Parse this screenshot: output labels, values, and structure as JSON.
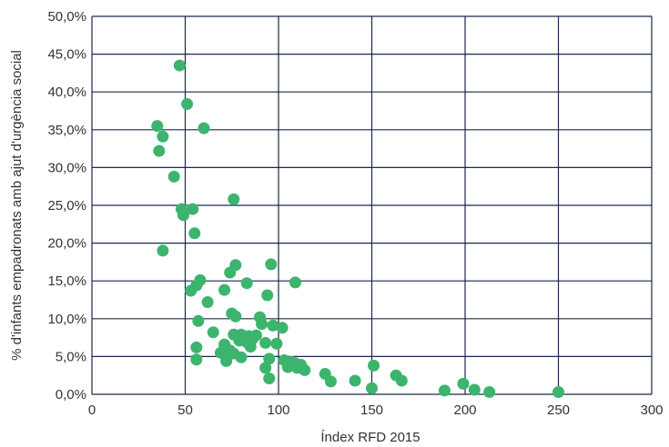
{
  "chart_data": {
    "type": "scatter",
    "title": "",
    "xlabel": "Índex RFD 2015",
    "ylabel": "% d'infants empadronats amb ajut d'urgència social",
    "xlim": [
      0,
      300
    ],
    "ylim": [
      0,
      50
    ],
    "x_ticks": [
      "0",
      "50",
      "100",
      "150",
      "200",
      "250",
      "300"
    ],
    "y_ticks": [
      "0,0%",
      "5,0%",
      "10,0%",
      "15,0%",
      "20,0%",
      "25,0%",
      "30,0%",
      "35,0%",
      "40,0%",
      "45,0%",
      "50,0%"
    ],
    "grid": true,
    "marker_color": "#3cb46e",
    "grid_color": "#1a2a4a",
    "series": [
      {
        "points": [
          [
            47,
            43.5
          ],
          [
            51,
            38.4
          ],
          [
            35,
            35.5
          ],
          [
            60,
            35.2
          ],
          [
            38,
            34.1
          ],
          [
            36,
            32.2
          ],
          [
            44,
            28.8
          ],
          [
            76,
            25.8
          ],
          [
            48,
            24.5
          ],
          [
            54,
            24.5
          ],
          [
            49,
            23.7
          ],
          [
            55,
            21.3
          ],
          [
            38,
            19.0
          ],
          [
            77,
            17.1
          ],
          [
            96,
            17.2
          ],
          [
            58,
            15.1
          ],
          [
            74,
            16.1
          ],
          [
            109,
            14.8
          ],
          [
            83,
            14.7
          ],
          [
            56,
            14.4
          ],
          [
            53,
            13.7
          ],
          [
            71,
            13.8
          ],
          [
            94,
            13.1
          ],
          [
            62,
            12.2
          ],
          [
            75,
            10.7
          ],
          [
            90,
            10.2
          ],
          [
            77,
            10.3
          ],
          [
            57,
            9.7
          ],
          [
            97,
            9.1
          ],
          [
            91,
            9.3
          ],
          [
            102,
            8.8
          ],
          [
            65,
            8.2
          ],
          [
            76,
            7.9
          ],
          [
            80,
            7.9
          ],
          [
            84,
            7.7
          ],
          [
            88,
            7.8
          ],
          [
            79,
            7.1
          ],
          [
            83,
            6.9
          ],
          [
            86,
            7.3
          ],
          [
            93,
            6.8
          ],
          [
            99,
            6.7
          ],
          [
            71,
            6.6
          ],
          [
            85,
            6.3
          ],
          [
            56,
            6.2
          ],
          [
            74,
            5.8
          ],
          [
            69,
            5.5
          ],
          [
            76,
            5.4
          ],
          [
            72,
            5.0
          ],
          [
            80,
            4.9
          ],
          [
            95,
            4.7
          ],
          [
            103,
            4.5
          ],
          [
            107,
            4.3
          ],
          [
            109,
            4.1
          ],
          [
            112,
            3.9
          ],
          [
            56,
            4.6
          ],
          [
            72,
            4.4
          ],
          [
            105,
            3.6
          ],
          [
            110,
            3.5
          ],
          [
            114,
            3.2
          ],
          [
            93,
            3.5
          ],
          [
            95,
            2.1
          ],
          [
            125,
            2.7
          ],
          [
            128,
            1.7
          ],
          [
            141,
            1.8
          ],
          [
            151,
            3.8
          ],
          [
            150,
            0.8
          ],
          [
            163,
            2.5
          ],
          [
            166,
            1.8
          ],
          [
            189,
            0.5
          ],
          [
            199,
            1.4
          ],
          [
            205,
            0.6
          ],
          [
            213,
            0.3
          ],
          [
            250,
            0.3
          ]
        ]
      }
    ]
  }
}
